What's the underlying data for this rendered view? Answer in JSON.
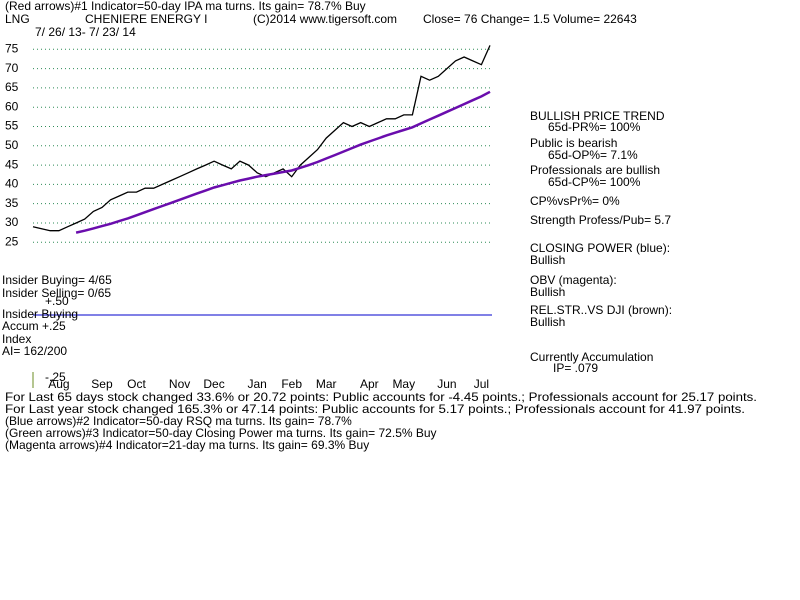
{
  "header": {
    "indicator1": "(Red arrows)#1 Indicator=50-day IPA ma turns. Its gain= 78.7% Buy",
    "ticker": "LNG",
    "company": "CHENIERE ENERGY I",
    "copyright": "(C)2014 www.tigersoft.com",
    "quote": "Close=  76  Change= 1.5 Volume= 22643",
    "dates": "7/ 26/ 13- 7/ 23/ 14"
  },
  "chart_data": {
    "type": "line",
    "categories": [
      null,
      null,
      null,
      "Aug",
      null,
      null,
      null,
      null,
      "Sep",
      null,
      null,
      null,
      "Oct",
      null,
      null,
      null,
      null,
      "Nov",
      null,
      null,
      null,
      "Dec",
      null,
      null,
      null,
      null,
      "Jan",
      null,
      null,
      null,
      "Feb",
      null,
      null,
      null,
      "Mar",
      null,
      null,
      null,
      null,
      "Apr",
      null,
      null,
      null,
      "May",
      null,
      null,
      null,
      null,
      "Jun",
      null,
      null,
      null,
      "Jul",
      null
    ],
    "series": [
      {
        "color": "#000000",
        "values": [
          29,
          28.5,
          28,
          28,
          29,
          30,
          31,
          33,
          34,
          36,
          37,
          38,
          38,
          39,
          39,
          40,
          41,
          42,
          43,
          44,
          45,
          46,
          45,
          44,
          46,
          45,
          43,
          42,
          43,
          44,
          42,
          45,
          47,
          49,
          52,
          54,
          56,
          55,
          56,
          55,
          56,
          57,
          57,
          58,
          58,
          68,
          67,
          68,
          70,
          72,
          73,
          72,
          71,
          76
        ]
      },
      {
        "color": "#6a0dad",
        "values": [
          null,
          null,
          null,
          null,
          null,
          27.5,
          28,
          28.6,
          29.2,
          29.8,
          30.5,
          31.2,
          32,
          32.8,
          33.6,
          34.4,
          35.2,
          36,
          36.8,
          37.6,
          38.4,
          39.2,
          39.8,
          40.4,
          41,
          41.5,
          42,
          42.4,
          42.8,
          43.2,
          43.6,
          44.3,
          45,
          45.8,
          46.7,
          47.6,
          48.5,
          49.4,
          50.3,
          51.1,
          51.9,
          52.7,
          53.4,
          54.1,
          54.8,
          55.8,
          56.8,
          57.8,
          58.8,
          59.8,
          60.8,
          61.8,
          62.8,
          64
        ]
      }
    ],
    "ylim": [
      23,
      80
    ],
    "yticks": [
      25,
      30,
      35,
      40,
      45,
      50,
      55,
      60,
      65,
      70,
      75
    ],
    "grid": true
  },
  "indicator_labels": [
    "Insider Buying= 4/65",
    "Insider Selling= 0/65",
    "+.50",
    "Insider Buying",
    "Accum  +.25",
    "Index",
    "AI= 162/200",
    "-.25"
  ],
  "side_panel": [
    "BULLISH PRICE TREND",
    "65d-PR%= 100%",
    "Public is bearish",
    "65d-OP%= 7.1%",
    "Professionals are bullish",
    "65d-CP%= 100%",
    "CP%vsPr%=  0%",
    "Strength Profess/Pub= 5.7",
    "CLOSING POWER (blue):",
    "Bullish",
    "OBV (magenta):",
    "Bullish",
    "REL.STR..VS DJI (brown):",
    "Bullish",
    "Currently Accumulation",
    "IP=  .079"
  ],
  "footer": [
    "For Last 65 days stock changed  33.6% or  20.72 points:  Public accounts for -4.45 points.;  Professionals account for  25.17 points.",
    "For Last year stock changed  165.3% or  47.14 points:  Public accounts for  5.17 points.;  Professionals account for  41.97 points.",
    "(Blue arrows)#2 Indicator=50-day RSQ ma turns. Its gain= 78.7%",
    "(Green arrows)#3 Indicator=50-day Closing Power ma turns. Its gain= 72.5% Buy",
    "(Magenta arrows)#4 Indicator=21-day ma turns. Its gain= 69.3% Buy"
  ]
}
